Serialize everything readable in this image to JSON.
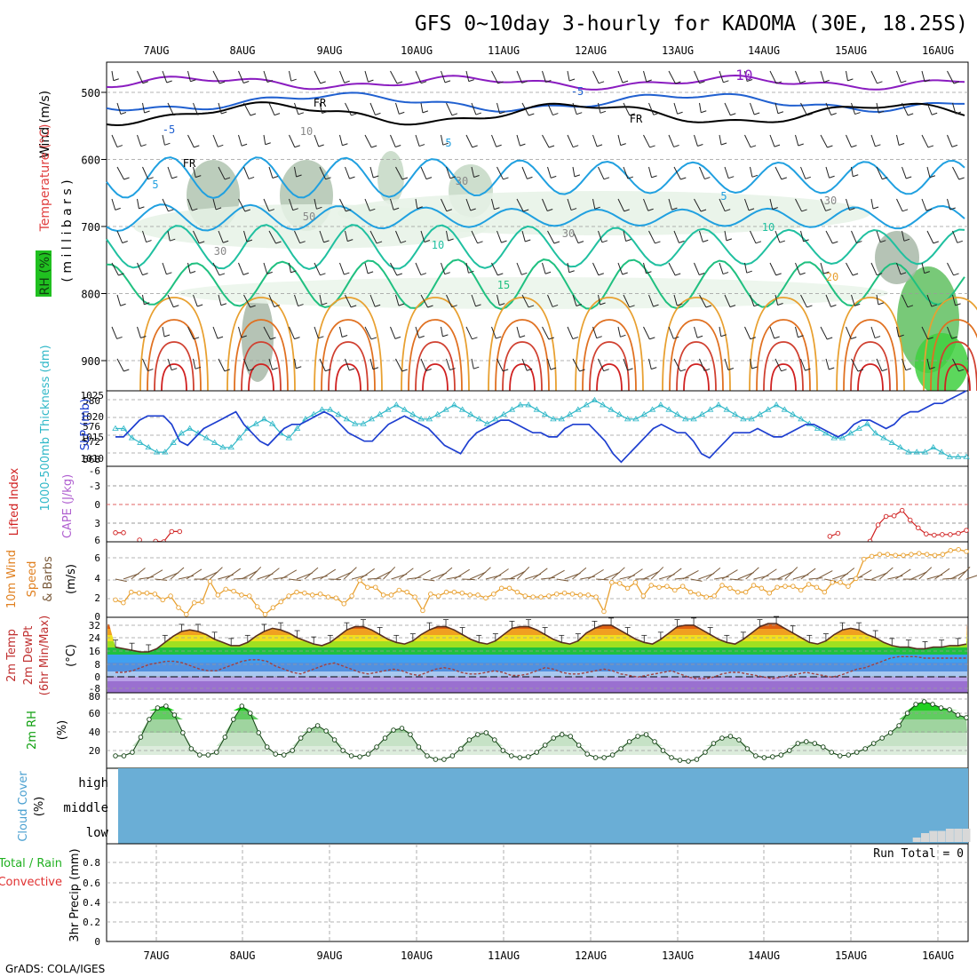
{
  "title": "GFS 0~10day 3-hourly for KADOMA (30E, 18.25S)",
  "footer": "GrADS: COLA/IGES",
  "dates": [
    "7AUG",
    "8AUG",
    "9AUG",
    "10AUG",
    "11AUG",
    "12AUG",
    "13AUG",
    "14AUG",
    "15AUG",
    "16AUG"
  ],
  "panels": {
    "upper": {
      "ylabel_wind": "Wind (m/s)",
      "ylabel_temp": "Temperature (°C)",
      "ylabel_rh": "RH (%)",
      "ylabel_mb": "( m i l l i b a r s )",
      "yticks": [
        "500",
        "600",
        "700",
        "800",
        "900"
      ],
      "contour_labels": [
        "-10",
        "-5",
        "-5",
        "5",
        "5",
        "5",
        "10",
        "10",
        "15",
        "20",
        "FR",
        "FR",
        "FR",
        "30",
        "30",
        "30",
        "50",
        "10",
        "30"
      ]
    },
    "slp": {
      "ylabel_thk": "1000-500mb Thickness (dm)",
      "ylabel_slp": "SLP (mb)",
      "yticks_left": [
        "568",
        "572",
        "576",
        "580"
      ],
      "yticks_right": [
        "1010",
        "1015",
        "1020",
        "1025"
      ]
    },
    "cape": {
      "ylabel_li": "Lifted Index",
      "ylabel_cape": "CAPE (J/kg)",
      "yticks": [
        "-6",
        "-3",
        "0",
        "3",
        "6"
      ]
    },
    "wind10": {
      "ylabel_a": "10m Wind",
      "ylabel_b": "Speed",
      "ylabel_c": "& Barbs",
      "ylabel_unit": "(m/s)",
      "yticks": [
        "0",
        "2",
        "4",
        "6"
      ]
    },
    "temp2m": {
      "ylabel_a": "2m Temp",
      "ylabel_b": "2m DewPt",
      "ylabel_c": "(6hr Min/Max)",
      "ylabel_unit": "(°C)",
      "yticks": [
        "-8",
        "0",
        "8",
        "16",
        "24",
        "32"
      ]
    },
    "rh2m": {
      "ylabel": "2m RH",
      "ylabel_unit": "(%)",
      "yticks": [
        "20",
        "40",
        "60",
        "80"
      ]
    },
    "cloud": {
      "ylabel": "Cloud Cover",
      "ylabel_unit": "(%)",
      "levels": [
        "high",
        "middle",
        "low"
      ]
    },
    "precip": {
      "ylabel_a": "Total / Rain",
      "ylabel_b": "Convective",
      "ylabel_c": "3hr Precip (mm)",
      "run_total": "Run Total = 0",
      "yticks": [
        "0",
        "0.2",
        "0.4",
        "0.6",
        "0.8"
      ]
    }
  },
  "colors": {
    "slp": "#1e3fd0",
    "thickness": "#30b8c8",
    "li": "#d02020",
    "cape": "#b060d0",
    "wind_speed": "#e8a030",
    "wind_barb": "#7a5a3a",
    "rh_green": "#20c020",
    "temp_contour_hot": "#d02020",
    "temp_contour_warm": "#e8a030",
    "cloud": "#6aaed6",
    "freezing": "#000000"
  },
  "chart_data": [
    {
      "type": "line",
      "title": "SLP / 1000-500mb Thickness",
      "x_units": "3-hourly steps from start (~6 Aug 12Z)",
      "series": [
        {
          "name": "SLP (mb)",
          "values": [
            1015,
            1015,
            1017,
            1019,
            1020,
            1020,
            1020,
            1018,
            1014,
            1013,
            1015,
            1017,
            1018,
            1019,
            1020,
            1021,
            1018,
            1016,
            1014,
            1013,
            1015,
            1017,
            1018,
            1018,
            1019,
            1020,
            1021,
            1020,
            1018,
            1016,
            1015,
            1014,
            1014,
            1016,
            1018,
            1019,
            1020,
            1019,
            1018,
            1017,
            1015,
            1013,
            1012,
            1011,
            1014,
            1016,
            1017,
            1018,
            1019,
            1019,
            1018,
            1017,
            1016,
            1016,
            1015,
            1015,
            1017,
            1018,
            1018,
            1018,
            1016,
            1014,
            1011,
            1009,
            1011,
            1013,
            1015,
            1017,
            1018,
            1017,
            1016,
            1016,
            1014,
            1011,
            1010,
            1012,
            1014,
            1016,
            1016,
            1016,
            1017,
            1016,
            1015,
            1015,
            1016,
            1017,
            1018,
            1018,
            1017,
            1016,
            1015,
            1016,
            1018,
            1019,
            1019,
            1018,
            1017,
            1018,
            1020,
            1021,
            1021,
            1022,
            1023,
            1023,
            1024,
            1025,
            1026
          ]
        },
        {
          "name": "Thickness (dm)",
          "values": [
            574,
            574,
            572,
            571,
            570,
            569,
            569,
            571,
            573,
            574,
            573,
            572,
            571,
            570,
            570,
            572,
            574,
            575,
            576,
            575,
            573,
            572,
            574,
            576,
            577,
            578,
            578,
            577,
            576,
            575,
            575,
            576,
            577,
            578,
            579,
            578,
            577,
            576,
            576,
            577,
            578,
            579,
            578,
            577,
            576,
            575,
            576,
            577,
            578,
            579,
            579,
            578,
            577,
            576,
            576,
            577,
            578,
            579,
            580,
            579,
            578,
            577,
            576,
            576,
            577,
            578,
            579,
            578,
            577,
            576,
            576,
            577,
            578,
            579,
            578,
            577,
            576,
            576,
            577,
            578,
            579,
            578,
            577,
            576,
            575,
            574,
            573,
            572,
            572,
            573,
            574,
            575,
            573,
            572,
            571,
            570,
            569,
            569,
            569,
            570,
            569,
            568,
            568,
            568
          ]
        }
      ]
    },
    {
      "type": "line",
      "title": "10m Wind Speed",
      "series": [
        {
          "name": "Wind speed (m/s)",
          "values": [
            1.8,
            1.5,
            2.6,
            2.5,
            2.5,
            2.4,
            1.8,
            2.2,
            1.0,
            0.3,
            1.5,
            1.6,
            3.7,
            2.3,
            2.9,
            2.7,
            2.3,
            2.2,
            1.1,
            0.3,
            1.0,
            1.6,
            2.2,
            2.6,
            2.5,
            2.3,
            2.4,
            2.1,
            2.0,
            1.4,
            2.2,
            3.8,
            3.1,
            3.1,
            2.3,
            2.3,
            2.8,
            2.6,
            2.1,
            0.7,
            2.4,
            2.2,
            2.6,
            2.6,
            2.5,
            2.3,
            2.3,
            2.0,
            2.4,
            3.0,
            3.0,
            2.6,
            2.2,
            2.1,
            2.1,
            2.2,
            2.4,
            2.5,
            2.4,
            2.3,
            2.3,
            2.1,
            0.6,
            3.6,
            3.5,
            3.0,
            3.6,
            2.2,
            3.3,
            3.1,
            3.2,
            2.8,
            3.2,
            2.6,
            2.4,
            2.1,
            2.2,
            3.3,
            3.0,
            2.6,
            2.6,
            3.3,
            3.0,
            2.5,
            3.1,
            3.2,
            3.2,
            2.8,
            3.4,
            3.1,
            2.6,
            3.6,
            3.6,
            3.2,
            4.0,
            6.0,
            6.3,
            6.5,
            6.5,
            6.4,
            6.4,
            6.5,
            6.6,
            6.5,
            6.4,
            6.5,
            6.9,
            7.0,
            6.8
          ]
        }
      ]
    },
    {
      "type": "line",
      "title": "Lifted Index",
      "series": [
        {
          "name": "Lifted Index",
          "values": [
            5.0,
            5.0,
            null,
            6.2,
            null,
            6.4,
            6.5,
            4.8,
            4.8,
            null,
            null,
            null,
            null,
            null,
            null,
            null,
            null,
            null,
            null,
            null,
            null,
            null,
            null,
            null,
            null,
            null,
            null,
            null,
            null,
            null,
            null,
            null,
            null,
            null,
            null,
            null,
            null,
            null,
            null,
            null,
            null,
            null,
            null,
            null,
            null,
            null,
            null,
            null,
            null,
            null,
            null,
            null,
            null,
            null,
            null,
            null,
            null,
            null,
            null,
            null,
            null,
            null,
            null,
            null,
            null,
            null,
            null,
            null,
            null,
            null,
            null,
            null,
            null,
            null,
            null,
            null,
            null,
            null,
            null,
            null,
            null,
            null,
            null,
            null,
            null,
            null,
            null,
            null,
            null,
            5.6,
            5.1,
            null,
            null,
            null,
            6.4,
            3.7,
            2.3,
            2.2,
            1.3,
            2.9,
            4.2,
            5.2,
            5.4,
            5.3,
            5.3,
            5.1,
            4.6
          ]
        }
      ]
    },
    {
      "type": "area",
      "title": "2m Temperature / Dew Point",
      "series": [
        {
          "name": "2m Temp (°C)",
          "values": [
            17,
            16,
            15,
            14,
            14,
            16,
            20,
            24,
            27,
            28,
            27,
            25,
            22,
            20,
            18,
            18,
            20,
            24,
            27,
            29,
            28,
            26,
            23,
            21,
            19,
            18,
            20,
            24,
            28,
            30,
            30,
            28,
            25,
            22,
            20,
            19,
            21,
            25,
            28,
            30,
            30,
            28,
            25,
            22,
            20,
            19,
            21,
            25,
            29,
            30,
            30,
            28,
            25,
            22,
            20,
            19,
            21,
            26,
            29,
            31,
            31,
            28,
            25,
            22,
            20,
            19,
            22,
            26,
            30,
            31,
            31,
            28,
            25,
            22,
            20,
            19,
            22,
            26,
            30,
            32,
            32,
            29,
            26,
            23,
            20,
            19,
            21,
            25,
            28,
            29,
            28,
            25,
            23,
            20,
            18,
            17,
            17,
            16,
            16,
            17,
            17,
            18,
            18,
            19
          ]
        },
        {
          "name": "2m DewPt (°C)",
          "values": [
            1,
            1,
            2,
            4,
            6,
            7,
            8,
            8,
            7,
            5,
            3,
            2,
            2,
            4,
            6,
            8,
            9,
            9,
            8,
            5,
            3,
            1,
            0,
            2,
            4,
            6,
            7,
            5,
            3,
            1,
            0,
            1,
            2,
            3,
            2,
            0,
            -1,
            1,
            3,
            4,
            3,
            1,
            0,
            0,
            1,
            2,
            1,
            -1,
            -1,
            0,
            2,
            4,
            3,
            1,
            0,
            0,
            1,
            2,
            3,
            2,
            0,
            -1,
            -2,
            -1,
            0,
            1,
            2,
            0,
            -2,
            -3,
            -3,
            -2,
            0,
            1,
            1,
            0,
            -1,
            -2,
            -3,
            -2,
            -1,
            0,
            1,
            0,
            -1,
            -2,
            -1,
            1,
            3,
            4,
            6,
            8,
            10,
            11,
            11,
            11,
            10,
            10,
            10,
            10,
            10,
            10
          ]
        }
      ]
    },
    {
      "type": "area",
      "title": "2m Relative Humidity",
      "series": [
        {
          "name": "2m RH (%)",
          "values": [
            14,
            14,
            18,
            35,
            55,
            68,
            70,
            60,
            40,
            22,
            15,
            15,
            18,
            35,
            55,
            70,
            62,
            40,
            24,
            16,
            15,
            20,
            34,
            43,
            48,
            42,
            32,
            20,
            14,
            13,
            16,
            24,
            34,
            43,
            45,
            38,
            24,
            14,
            10,
            10,
            14,
            22,
            32,
            38,
            40,
            32,
            20,
            14,
            12,
            13,
            18,
            26,
            34,
            38,
            36,
            26,
            16,
            12,
            12,
            15,
            22,
            30,
            36,
            38,
            30,
            20,
            12,
            9,
            8,
            10,
            18,
            28,
            34,
            36,
            32,
            22,
            14,
            12,
            13,
            15,
            20,
            28,
            30,
            28,
            24,
            18,
            14,
            15,
            18,
            22,
            28,
            34,
            40,
            48,
            62,
            72,
            75,
            72,
            68,
            66,
            60,
            57
          ]
        }
      ]
    },
    {
      "type": "area",
      "title": "Cloud Cover",
      "series": [
        {
          "name": "Low cloud (%)",
          "values": [
            0,
            0,
            0,
            0,
            0,
            0,
            0,
            0,
            0,
            0,
            0,
            0,
            0,
            0,
            0,
            0,
            0,
            0,
            0,
            0,
            0,
            0,
            0,
            0,
            0,
            0,
            0,
            0,
            0,
            0,
            0,
            0,
            0,
            0,
            0,
            0,
            0,
            0,
            0,
            0,
            0,
            0,
            0,
            0,
            0,
            0,
            0,
            0,
            0,
            0,
            0,
            0,
            0,
            0,
            0,
            0,
            0,
            0,
            0,
            0,
            0,
            0,
            0,
            0,
            0,
            0,
            0,
            0,
            0,
            0,
            0,
            0,
            0,
            0,
            0,
            0,
            0,
            0,
            0,
            0,
            0,
            0,
            0,
            0,
            0,
            0,
            0,
            0,
            0,
            0,
            0,
            0,
            0,
            0,
            0,
            0,
            0,
            10,
            20,
            25,
            25,
            30,
            30,
            30
          ]
        }
      ]
    },
    {
      "type": "bar",
      "title": "3hr Precip",
      "ylim": [
        0,
        0.9
      ],
      "series": [
        {
          "name": "Total / Rain (mm)",
          "values": []
        }
      ]
    }
  ]
}
